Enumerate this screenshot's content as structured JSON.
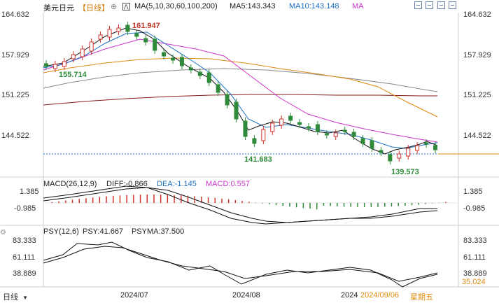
{
  "header": {
    "title": "美元日元",
    "period": "【日线】",
    "period_icon": "target-icon",
    "ma_label": "MA(5,10,30,60,100,200)",
    "ma5": "MA5:143.343",
    "ma10": "MA10:143.148",
    "ma_more": "MA"
  },
  "price_axis": [
    "164.632",
    "157.929",
    "151.225",
    "144.522"
  ],
  "price_annotations": {
    "high": "161.947",
    "low1": "155.714",
    "low2": "141.683",
    "low3": "139.573"
  },
  "macd": {
    "label": "MACD(26,12,9)",
    "diff": "DIFF:-0.866",
    "dea": "DEA:-1.145",
    "macd": "MACD:0.557",
    "axis": [
      "1.385",
      "-0.985"
    ]
  },
  "psy": {
    "label": "PSY(12,6)",
    "psy": "PSY:41.667",
    "psyma": "PSYMA:37.500",
    "axis": [
      "83.333",
      "61.111",
      "38.889"
    ],
    "current": "35.024"
  },
  "xaxis": {
    "labels": [
      "2024/07",
      "2024/08",
      "2024"
    ],
    "current_date": "2024/09/06",
    "weekday": "星期五"
  },
  "footer": {
    "period_button": "日线"
  },
  "colors": {
    "up": "#d0322b",
    "down": "#2f8a3a",
    "ma5": "#111111",
    "ma10": "#cc33cc",
    "ma30": "#e08a10",
    "ma60": "#555555",
    "ma100": "#888888",
    "ma200": "#8b1a1a",
    "current": "#1a6fc4",
    "annot_up": "#c0392b",
    "annot_down": "#2e8b3a"
  }
}
